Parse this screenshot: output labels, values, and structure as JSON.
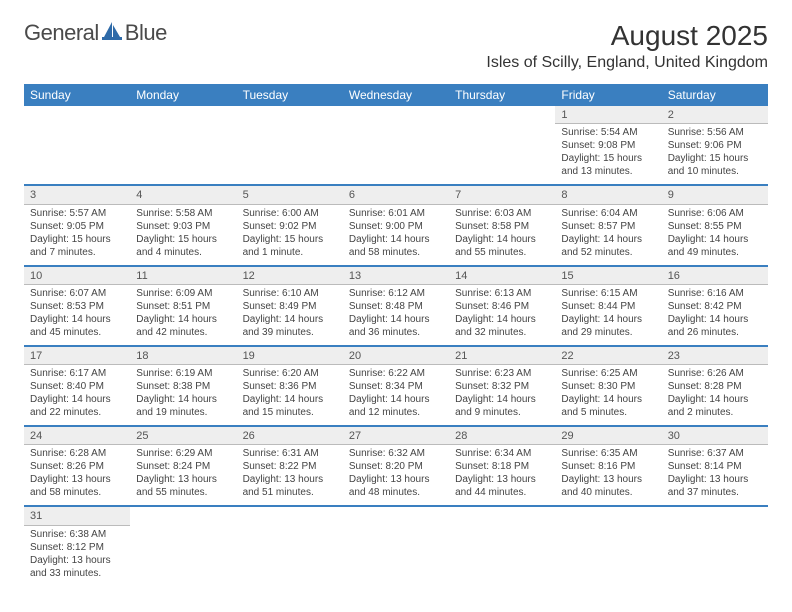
{
  "brand": {
    "word1": "General",
    "word2": "Blue"
  },
  "title": "August 2025",
  "location": "Isles of Scilly, England, United Kingdom",
  "colors": {
    "header_bg": "#3a7fc0",
    "header_text": "#ffffff",
    "daynum_bg": "#eeeeee",
    "row_divider": "#3a7fc0",
    "text": "#444444"
  },
  "day_headers": [
    "Sunday",
    "Monday",
    "Tuesday",
    "Wednesday",
    "Thursday",
    "Friday",
    "Saturday"
  ],
  "weeks": [
    {
      "nums": [
        "",
        "",
        "",
        "",
        "",
        "1",
        "2"
      ],
      "cells": [
        null,
        null,
        null,
        null,
        null,
        {
          "sunrise": "Sunrise: 5:54 AM",
          "sunset": "Sunset: 9:08 PM",
          "daylight": "Daylight: 15 hours and 13 minutes."
        },
        {
          "sunrise": "Sunrise: 5:56 AM",
          "sunset": "Sunset: 9:06 PM",
          "daylight": "Daylight: 15 hours and 10 minutes."
        }
      ]
    },
    {
      "nums": [
        "3",
        "4",
        "5",
        "6",
        "7",
        "8",
        "9"
      ],
      "cells": [
        {
          "sunrise": "Sunrise: 5:57 AM",
          "sunset": "Sunset: 9:05 PM",
          "daylight": "Daylight: 15 hours and 7 minutes."
        },
        {
          "sunrise": "Sunrise: 5:58 AM",
          "sunset": "Sunset: 9:03 PM",
          "daylight": "Daylight: 15 hours and 4 minutes."
        },
        {
          "sunrise": "Sunrise: 6:00 AM",
          "sunset": "Sunset: 9:02 PM",
          "daylight": "Daylight: 15 hours and 1 minute."
        },
        {
          "sunrise": "Sunrise: 6:01 AM",
          "sunset": "Sunset: 9:00 PM",
          "daylight": "Daylight: 14 hours and 58 minutes."
        },
        {
          "sunrise": "Sunrise: 6:03 AM",
          "sunset": "Sunset: 8:58 PM",
          "daylight": "Daylight: 14 hours and 55 minutes."
        },
        {
          "sunrise": "Sunrise: 6:04 AM",
          "sunset": "Sunset: 8:57 PM",
          "daylight": "Daylight: 14 hours and 52 minutes."
        },
        {
          "sunrise": "Sunrise: 6:06 AM",
          "sunset": "Sunset: 8:55 PM",
          "daylight": "Daylight: 14 hours and 49 minutes."
        }
      ]
    },
    {
      "nums": [
        "10",
        "11",
        "12",
        "13",
        "14",
        "15",
        "16"
      ],
      "cells": [
        {
          "sunrise": "Sunrise: 6:07 AM",
          "sunset": "Sunset: 8:53 PM",
          "daylight": "Daylight: 14 hours and 45 minutes."
        },
        {
          "sunrise": "Sunrise: 6:09 AM",
          "sunset": "Sunset: 8:51 PM",
          "daylight": "Daylight: 14 hours and 42 minutes."
        },
        {
          "sunrise": "Sunrise: 6:10 AM",
          "sunset": "Sunset: 8:49 PM",
          "daylight": "Daylight: 14 hours and 39 minutes."
        },
        {
          "sunrise": "Sunrise: 6:12 AM",
          "sunset": "Sunset: 8:48 PM",
          "daylight": "Daylight: 14 hours and 36 minutes."
        },
        {
          "sunrise": "Sunrise: 6:13 AM",
          "sunset": "Sunset: 8:46 PM",
          "daylight": "Daylight: 14 hours and 32 minutes."
        },
        {
          "sunrise": "Sunrise: 6:15 AM",
          "sunset": "Sunset: 8:44 PM",
          "daylight": "Daylight: 14 hours and 29 minutes."
        },
        {
          "sunrise": "Sunrise: 6:16 AM",
          "sunset": "Sunset: 8:42 PM",
          "daylight": "Daylight: 14 hours and 26 minutes."
        }
      ]
    },
    {
      "nums": [
        "17",
        "18",
        "19",
        "20",
        "21",
        "22",
        "23"
      ],
      "cells": [
        {
          "sunrise": "Sunrise: 6:17 AM",
          "sunset": "Sunset: 8:40 PM",
          "daylight": "Daylight: 14 hours and 22 minutes."
        },
        {
          "sunrise": "Sunrise: 6:19 AM",
          "sunset": "Sunset: 8:38 PM",
          "daylight": "Daylight: 14 hours and 19 minutes."
        },
        {
          "sunrise": "Sunrise: 6:20 AM",
          "sunset": "Sunset: 8:36 PM",
          "daylight": "Daylight: 14 hours and 15 minutes."
        },
        {
          "sunrise": "Sunrise: 6:22 AM",
          "sunset": "Sunset: 8:34 PM",
          "daylight": "Daylight: 14 hours and 12 minutes."
        },
        {
          "sunrise": "Sunrise: 6:23 AM",
          "sunset": "Sunset: 8:32 PM",
          "daylight": "Daylight: 14 hours and 9 minutes."
        },
        {
          "sunrise": "Sunrise: 6:25 AM",
          "sunset": "Sunset: 8:30 PM",
          "daylight": "Daylight: 14 hours and 5 minutes."
        },
        {
          "sunrise": "Sunrise: 6:26 AM",
          "sunset": "Sunset: 8:28 PM",
          "daylight": "Daylight: 14 hours and 2 minutes."
        }
      ]
    },
    {
      "nums": [
        "24",
        "25",
        "26",
        "27",
        "28",
        "29",
        "30"
      ],
      "cells": [
        {
          "sunrise": "Sunrise: 6:28 AM",
          "sunset": "Sunset: 8:26 PM",
          "daylight": "Daylight: 13 hours and 58 minutes."
        },
        {
          "sunrise": "Sunrise: 6:29 AM",
          "sunset": "Sunset: 8:24 PM",
          "daylight": "Daylight: 13 hours and 55 minutes."
        },
        {
          "sunrise": "Sunrise: 6:31 AM",
          "sunset": "Sunset: 8:22 PM",
          "daylight": "Daylight: 13 hours and 51 minutes."
        },
        {
          "sunrise": "Sunrise: 6:32 AM",
          "sunset": "Sunset: 8:20 PM",
          "daylight": "Daylight: 13 hours and 48 minutes."
        },
        {
          "sunrise": "Sunrise: 6:34 AM",
          "sunset": "Sunset: 8:18 PM",
          "daylight": "Daylight: 13 hours and 44 minutes."
        },
        {
          "sunrise": "Sunrise: 6:35 AM",
          "sunset": "Sunset: 8:16 PM",
          "daylight": "Daylight: 13 hours and 40 minutes."
        },
        {
          "sunrise": "Sunrise: 6:37 AM",
          "sunset": "Sunset: 8:14 PM",
          "daylight": "Daylight: 13 hours and 37 minutes."
        }
      ]
    },
    {
      "nums": [
        "31",
        "",
        "",
        "",
        "",
        "",
        ""
      ],
      "cells": [
        {
          "sunrise": "Sunrise: 6:38 AM",
          "sunset": "Sunset: 8:12 PM",
          "daylight": "Daylight: 13 hours and 33 minutes."
        },
        null,
        null,
        null,
        null,
        null,
        null
      ]
    }
  ]
}
